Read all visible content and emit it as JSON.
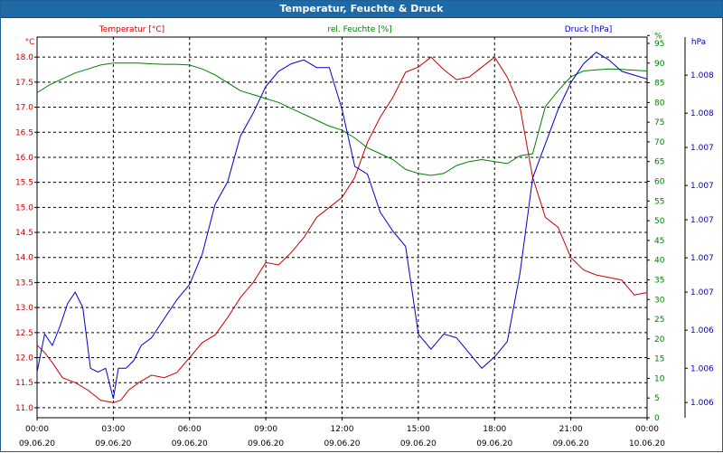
{
  "window": {
    "title": "Temperatur, Feuchte & Druck"
  },
  "colors": {
    "temperature": "#cc0000",
    "humidity": "#008000",
    "pressure": "#0000cc",
    "grid": "#000000",
    "title_bg": "#1e6aa6"
  },
  "chart_data": {
    "type": "line",
    "title": "Temperatur, Feuchte & Druck",
    "series_labels": {
      "temperature": "Temperatur [°C]",
      "humidity": "rel. Feuchte [%]",
      "pressure": "Druck [hPa]"
    },
    "unit_labels": {
      "left": "°C",
      "right_humidity": "%",
      "right_pressure": "hPa"
    },
    "left_axis": {
      "ylim": [
        10.8,
        18.4
      ],
      "ticks": [
        "11.0",
        "11.5",
        "12.0",
        "12.5",
        "13.0",
        "13.5",
        "14.0",
        "14.5",
        "15.0",
        "15.5",
        "16.0",
        "16.5",
        "17.0",
        "17.5",
        "18.0"
      ],
      "tick_values": [
        11.0,
        11.5,
        12.0,
        12.5,
        13.0,
        13.5,
        14.0,
        14.5,
        15.0,
        15.5,
        16.0,
        16.5,
        17.0,
        17.5,
        18.0
      ]
    },
    "humidity_axis": {
      "ylim": [
        0,
        96.6
      ],
      "ticks": [
        "0",
        "5",
        "10",
        "15",
        "20",
        "25",
        "30",
        "35",
        "40",
        "45",
        "50",
        "55",
        "60",
        "65",
        "70",
        "75",
        "80",
        "85",
        "90",
        "95",
        "%"
      ],
      "tick_values": [
        0,
        5,
        10,
        15,
        20,
        25,
        30,
        35,
        40,
        45,
        50,
        55,
        60,
        65,
        70,
        75,
        80,
        85,
        90,
        95,
        97
      ]
    },
    "pressure_axis": {
      "ylim": [
        0,
        1
      ],
      "ticks": [
        "1.006",
        "1.006",
        "1.006",
        "1.007",
        "1.007",
        "1.007",
        "1.007",
        "1.007",
        "1.008",
        "1.008"
      ],
      "tick_values": [
        0.04,
        0.13,
        0.23,
        0.33,
        0.42,
        0.52,
        0.61,
        0.71,
        0.8,
        0.9
      ]
    },
    "x_axis": {
      "xlim": [
        0,
        24
      ],
      "ticks": [
        {
          "value": 0,
          "time": "00:00",
          "date": "09.06.20"
        },
        {
          "value": 3,
          "time": "03:00",
          "date": "09.06.20"
        },
        {
          "value": 6,
          "time": "06:00",
          "date": "09.06.20"
        },
        {
          "value": 9,
          "time": "09:00",
          "date": "09.06.20"
        },
        {
          "value": 12,
          "time": "12:00",
          "date": "09.06.20"
        },
        {
          "value": 15,
          "time": "15:00",
          "date": "09.06.20"
        },
        {
          "value": 18,
          "time": "18:00",
          "date": "09.06.20"
        },
        {
          "value": 21,
          "time": "21:00",
          "date": "09.06.20"
        },
        {
          "value": 24,
          "time": "00:00",
          "date": "10.06.20"
        }
      ]
    },
    "series": [
      {
        "name": "Temperatur [°C]",
        "axis": "left",
        "key": "temperature",
        "x": [
          0,
          0.3,
          0.6,
          1.0,
          1.5,
          2.0,
          2.5,
          3.0,
          3.3,
          3.6,
          4.0,
          4.5,
          5.0,
          5.5,
          6.0,
          6.5,
          7.0,
          7.5,
          8.0,
          8.5,
          9.0,
          9.5,
          10.0,
          10.5,
          11.0,
          11.5,
          12.0,
          12.5,
          13.0,
          13.5,
          14.0,
          14.5,
          15.0,
          15.5,
          16.0,
          16.5,
          17.0,
          17.5,
          18.0,
          18.5,
          19.0,
          19.5,
          20.0,
          20.5,
          21.0,
          21.5,
          22.0,
          22.5,
          23.0,
          23.5,
          24.0
        ],
        "values": [
          12.25,
          12.1,
          11.9,
          11.6,
          11.5,
          11.35,
          11.15,
          11.1,
          11.15,
          11.35,
          11.5,
          11.65,
          11.6,
          11.7,
          12.0,
          12.3,
          12.45,
          12.8,
          13.2,
          13.5,
          13.9,
          13.85,
          14.1,
          14.4,
          14.8,
          15.0,
          15.2,
          15.6,
          16.3,
          16.8,
          17.2,
          17.7,
          17.8,
          18.0,
          17.75,
          17.55,
          17.6,
          17.8,
          18.0,
          17.6,
          17.0,
          15.6,
          14.8,
          14.6,
          14.0,
          13.75,
          13.65,
          13.6,
          13.55,
          13.25,
          13.3
        ]
      },
      {
        "name": "rel. Feuchte [%]",
        "axis": "humidity",
        "key": "humidity",
        "x": [
          0,
          0.5,
          1.0,
          1.5,
          2.0,
          2.5,
          3.0,
          3.5,
          4.0,
          4.5,
          5.0,
          5.5,
          6.0,
          6.5,
          7.0,
          7.5,
          8.0,
          8.5,
          9.0,
          9.5,
          10.0,
          10.5,
          11.0,
          11.5,
          12.0,
          12.5,
          13.0,
          13.5,
          14.0,
          14.5,
          15.0,
          15.5,
          16.0,
          16.5,
          17.0,
          17.5,
          18.0,
          18.5,
          19.0,
          19.5,
          20.0,
          20.5,
          21.0,
          21.5,
          22.0,
          22.5,
          23.0,
          23.5,
          24.0
        ],
        "values": [
          82.5,
          84.5,
          86,
          87.5,
          88.5,
          89.5,
          90,
          90,
          90,
          89.8,
          89.7,
          89.7,
          89.5,
          88.5,
          87,
          85,
          83,
          82,
          81,
          80,
          78.5,
          77,
          75.5,
          74,
          73,
          71,
          68.5,
          67,
          65.5,
          63,
          62,
          61.5,
          62,
          64,
          65,
          65.5,
          65,
          64.5,
          66.5,
          67,
          79,
          83,
          86.5,
          88,
          88.3,
          88.5,
          88.4,
          88.2,
          88
        ]
      },
      {
        "name": "Druck [hPa]",
        "axis": "pressure",
        "key": "pressure",
        "x": [
          0,
          0.3,
          0.6,
          0.9,
          1.2,
          1.5,
          1.8,
          2.1,
          2.4,
          2.7,
          3.0,
          3.2,
          3.5,
          3.8,
          4.1,
          4.5,
          5.0,
          5.5,
          6.0,
          6.5,
          7.0,
          7.5,
          8.0,
          8.5,
          9.0,
          9.5,
          10.0,
          10.5,
          11.0,
          11.5,
          12.0,
          12.5,
          13.0,
          13.5,
          14.0,
          14.5,
          15.0,
          15.5,
          16.0,
          16.5,
          17.0,
          17.5,
          18.0,
          18.5,
          19.0,
          19.5,
          20.0,
          20.5,
          21.0,
          21.5,
          22.0,
          22.5,
          23.0,
          23.5,
          24.0
        ],
        "values": [
          0.12,
          0.22,
          0.19,
          0.24,
          0.3,
          0.33,
          0.29,
          0.13,
          0.12,
          0.13,
          0.05,
          0.13,
          0.13,
          0.15,
          0.19,
          0.21,
          0.26,
          0.31,
          0.35,
          0.43,
          0.56,
          0.62,
          0.74,
          0.8,
          0.87,
          0.91,
          0.93,
          0.94,
          0.92,
          0.92,
          0.81,
          0.66,
          0.64,
          0.54,
          0.49,
          0.45,
          0.22,
          0.18,
          0.22,
          0.21,
          0.17,
          0.13,
          0.16,
          0.2,
          0.38,
          0.63,
          0.72,
          0.81,
          0.88,
          0.93,
          0.96,
          0.94,
          0.91,
          0.9,
          0.89
        ]
      }
    ]
  }
}
